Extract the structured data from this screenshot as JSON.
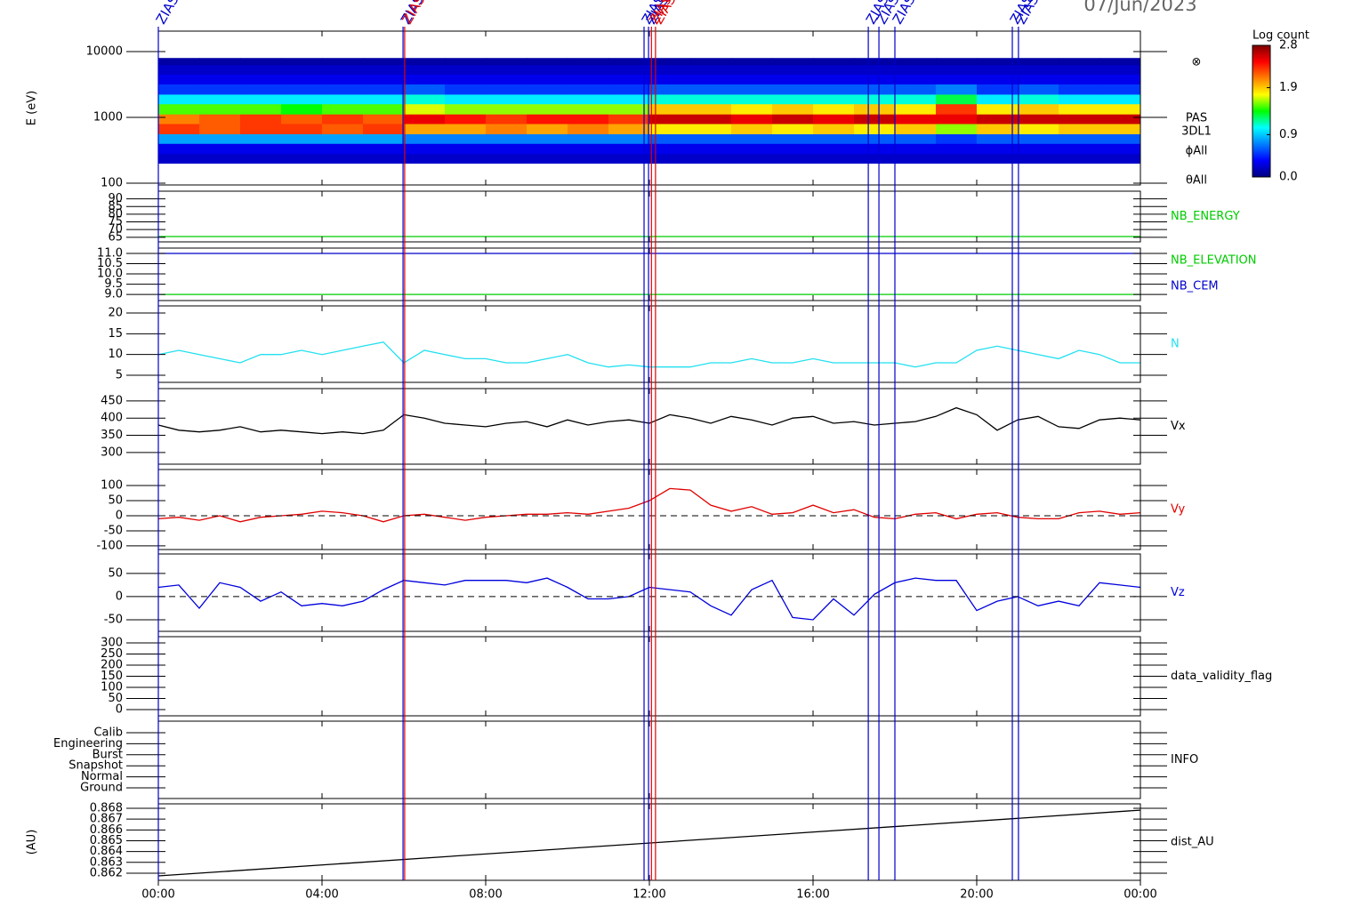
{
  "chart_data": [
    {
      "type": "heatmap",
      "title": "07/Jun/2023",
      "ylabel": "E (eV)",
      "ylog": true,
      "ylim": [
        94,
        20500
      ],
      "yticks": [
        100,
        1000,
        10000
      ],
      "xbins": [
        0,
        1,
        2,
        3,
        4,
        5,
        6,
        7,
        8,
        9,
        10,
        11,
        12,
        13,
        14,
        15,
        16,
        17,
        18,
        19,
        20,
        21,
        22,
        23,
        24
      ],
      "ybins": [
        200,
        280,
        400,
        560,
        800,
        1120,
        1600,
        2240,
        3200,
        4500,
        6300,
        8000
      ],
      "z": [
        [
          0.2,
          0.3,
          0.8,
          2.3,
          2.1,
          1.5,
          1.0,
          0.5,
          0.3,
          0.2,
          0.1
        ],
        [
          0.2,
          0.3,
          0.8,
          2.2,
          2.2,
          1.5,
          1.0,
          0.5,
          0.3,
          0.2,
          0.1
        ],
        [
          0.2,
          0.3,
          0.8,
          2.3,
          2.3,
          1.5,
          1.0,
          0.5,
          0.3,
          0.2,
          0.1
        ],
        [
          0.2,
          0.3,
          0.8,
          2.3,
          2.2,
          1.4,
          1.0,
          0.5,
          0.3,
          0.2,
          0.1
        ],
        [
          0.2,
          0.3,
          0.8,
          2.2,
          2.3,
          1.5,
          1.0,
          0.5,
          0.3,
          0.2,
          0.1
        ],
        [
          0.2,
          0.3,
          0.8,
          2.3,
          2.2,
          1.5,
          1.0,
          0.5,
          0.3,
          0.2,
          0.1
        ],
        [
          0.2,
          0.3,
          0.7,
          2.0,
          2.5,
          1.7,
          1.1,
          0.6,
          0.3,
          0.2,
          0.1
        ],
        [
          0.2,
          0.3,
          0.7,
          2.0,
          2.4,
          1.6,
          1.0,
          0.5,
          0.3,
          0.2,
          0.1
        ],
        [
          0.2,
          0.3,
          0.7,
          2.1,
          2.3,
          1.6,
          1.0,
          0.5,
          0.3,
          0.2,
          0.1
        ],
        [
          0.2,
          0.3,
          0.7,
          2.0,
          2.4,
          1.6,
          1.0,
          0.5,
          0.3,
          0.2,
          0.1
        ],
        [
          0.2,
          0.3,
          0.7,
          2.1,
          2.4,
          1.6,
          1.0,
          0.5,
          0.3,
          0.2,
          0.1
        ],
        [
          0.2,
          0.3,
          0.7,
          2.0,
          2.3,
          1.6,
          1.0,
          0.5,
          0.3,
          0.2,
          0.1
        ],
        [
          0.2,
          0.3,
          0.6,
          1.8,
          2.6,
          1.9,
          1.1,
          0.6,
          0.3,
          0.2,
          0.1
        ],
        [
          0.2,
          0.3,
          0.6,
          1.8,
          2.6,
          1.9,
          1.1,
          0.6,
          0.3,
          0.2,
          0.1
        ],
        [
          0.2,
          0.3,
          0.6,
          1.9,
          2.5,
          1.8,
          1.1,
          0.6,
          0.3,
          0.2,
          0.1
        ],
        [
          0.2,
          0.3,
          0.6,
          1.8,
          2.6,
          1.9,
          1.1,
          0.6,
          0.3,
          0.2,
          0.1
        ],
        [
          0.2,
          0.3,
          0.6,
          1.9,
          2.5,
          1.8,
          1.1,
          0.6,
          0.3,
          0.2,
          0.1
        ],
        [
          0.2,
          0.3,
          0.6,
          1.8,
          2.6,
          1.9,
          1.1,
          0.6,
          0.3,
          0.2,
          0.1
        ],
        [
          0.2,
          0.3,
          0.6,
          1.9,
          2.5,
          1.8,
          1.1,
          0.6,
          0.3,
          0.2,
          0.1
        ],
        [
          0.2,
          0.3,
          0.5,
          1.6,
          2.5,
          2.3,
          1.3,
          0.7,
          0.3,
          0.2,
          0.1
        ],
        [
          0.2,
          0.3,
          0.6,
          1.9,
          2.6,
          1.8,
          1.0,
          0.5,
          0.3,
          0.2,
          0.1
        ],
        [
          0.2,
          0.3,
          0.6,
          1.8,
          2.6,
          1.9,
          1.1,
          0.6,
          0.3,
          0.2,
          0.1
        ],
        [
          0.2,
          0.3,
          0.6,
          1.9,
          2.6,
          1.8,
          1.0,
          0.5,
          0.3,
          0.2,
          0.1
        ],
        [
          0.2,
          0.3,
          0.6,
          1.9,
          2.6,
          1.8,
          1.0,
          0.5,
          0.3,
          0.2,
          0.1
        ]
      ],
      "zlim": [
        0,
        2.8
      ],
      "colorbar_title": "Log count",
      "zticks": [
        {
          "value": 0,
          "label": "0.0"
        },
        0.9,
        1.9,
        2.8
      ],
      "colormap": [
        "#00007f",
        "#0000ff",
        "#0080ff",
        "#00ffff",
        "#00ff00",
        "#ffff00",
        "#ff8000",
        "#ff0000",
        "#7f0000"
      ],
      "labels": [
        "⊗",
        "PAS",
        "3DL1",
        "ϕAll",
        "θAll"
      ],
      "events": [
        {
          "time": 0,
          "color": "#0000cc",
          "label": "ZIAS"
        },
        {
          "time": 5.98,
          "color": "#0000cc",
          "label": "ZIAS"
        },
        {
          "time": 6.02,
          "color": "#dd0000",
          "label": "ZIAS"
        },
        {
          "time": 11.87,
          "color": "#0000cc",
          "label": "ZIAS"
        },
        {
          "time": 11.98,
          "color": "#0000cc",
          "label": "ZIAS"
        },
        {
          "time": 12.05,
          "color": "#dd0000",
          "label": "ZIAS"
        },
        {
          "time": 12.15,
          "color": "#dd0000",
          "label": "ZIAS"
        },
        {
          "time": 17.35,
          "color": "#0000cc",
          "label": "ZIAS"
        },
        {
          "time": 17.61,
          "color": "#0000cc",
          "label": "ZIAS"
        },
        {
          "time": 18.0,
          "color": "#0000cc",
          "label": "ZIAS"
        },
        {
          "time": 20.87,
          "color": "#0000cc",
          "label": "ZIAS"
        },
        {
          "time": 21.02,
          "color": "#0000cc",
          "label": "ZIAS"
        }
      ]
    },
    {
      "type": "line",
      "ylim": [
        62,
        95
      ],
      "yticks": [
        65,
        70,
        75,
        80,
        85,
        90
      ],
      "x": [
        0,
        24
      ],
      "series": [
        {
          "name": "NB_ENERGY",
          "color": "#00cc00",
          "values": [
            65.5,
            65.5
          ]
        }
      ]
    },
    {
      "type": "line",
      "ylim": [
        8.7,
        11.26
      ],
      "yticks": [
        {
          "value": 9,
          "label": "9.0"
        },
        9.5,
        {
          "value": 10,
          "label": "10.0"
        },
        10.5,
        {
          "value": 11,
          "label": "11.0"
        }
      ],
      "x": [
        0,
        24
      ],
      "series": [
        {
          "name": "NB_ELEVATION",
          "color": "#00cc00",
          "values": [
            9,
            9
          ]
        },
        {
          "name": "NB_CEM",
          "color": "#0000cc",
          "values": [
            11,
            11
          ]
        }
      ]
    },
    {
      "type": "line",
      "ylim": [
        3.3,
        21.7
      ],
      "yticks": [
        5,
        10,
        15,
        20
      ],
      "x": [
        0,
        0.5,
        1,
        1.5,
        2,
        2.5,
        3,
        3.5,
        4,
        4.5,
        5,
        5.5,
        6,
        6.5,
        7,
        7.5,
        8,
        8.5,
        9,
        9.5,
        10,
        10.5,
        11,
        11.5,
        12,
        12.5,
        13,
        13.5,
        14,
        14.5,
        15,
        15.5,
        16,
        16.5,
        17,
        17.5,
        18,
        18.5,
        19,
        19.5,
        20,
        20.5,
        21,
        21.5,
        22,
        22.5,
        23,
        23.5,
        24
      ],
      "series": [
        {
          "name": "N",
          "color": "#22e0f0",
          "values": [
            10,
            11,
            10,
            9,
            8,
            10,
            10,
            11,
            10,
            11,
            12,
            13,
            8,
            11,
            10,
            9,
            9,
            8,
            8,
            9,
            10,
            8,
            7,
            7.5,
            7,
            7,
            7,
            8,
            8,
            9,
            8,
            8,
            9,
            8,
            8,
            8,
            8,
            7,
            8,
            8,
            11,
            12,
            11,
            10,
            9,
            11,
            10,
            8,
            8
          ]
        }
      ]
    },
    {
      "type": "line",
      "ylim": [
        266,
        486
      ],
      "yticks": [
        300,
        350,
        400,
        450
      ],
      "x": [
        0,
        0.5,
        1,
        1.5,
        2,
        2.5,
        3,
        3.5,
        4,
        4.5,
        5,
        5.5,
        6,
        6.5,
        7,
        7.5,
        8,
        8.5,
        9,
        9.5,
        10,
        10.5,
        11,
        11.5,
        12,
        12.5,
        13,
        13.5,
        14,
        14.5,
        15,
        15.5,
        16,
        16.5,
        17,
        17.5,
        18,
        18.5,
        19,
        19.5,
        20,
        20.5,
        21,
        21.5,
        22,
        22.5,
        23,
        23.5,
        24
      ],
      "series": [
        {
          "name": "Vx",
          "color": "#000000",
          "values": [
            380,
            365,
            360,
            365,
            375,
            360,
            365,
            360,
            355,
            360,
            355,
            365,
            410,
            400,
            385,
            380,
            375,
            385,
            390,
            375,
            395,
            380,
            390,
            395,
            385,
            410,
            400,
            385,
            405,
            395,
            380,
            400,
            405,
            385,
            390,
            380,
            385,
            390,
            405,
            430,
            410,
            365,
            395,
            405,
            375,
            370,
            395,
            400,
            395
          ]
        }
      ]
    },
    {
      "type": "line",
      "ylim": [
        -112,
        153
      ],
      "yticks": [
        -100,
        -50,
        0,
        50,
        100
      ],
      "zero_line": true,
      "x": [
        0,
        0.5,
        1,
        1.5,
        2,
        2.5,
        3,
        3.5,
        4,
        4.5,
        5,
        5.5,
        6,
        6.5,
        7,
        7.5,
        8,
        8.5,
        9,
        9.5,
        10,
        10.5,
        11,
        11.5,
        12,
        12.5,
        13,
        13.5,
        14,
        14.5,
        15,
        15.5,
        16,
        16.5,
        17,
        17.5,
        18,
        18.5,
        19,
        19.5,
        20,
        20.5,
        21,
        21.5,
        22,
        22.5,
        23,
        23.5,
        24
      ],
      "series": [
        {
          "name": "Vy",
          "color": "#e00000",
          "values": [
            -10,
            -5,
            -15,
            0,
            -20,
            -5,
            0,
            5,
            15,
            10,
            0,
            -20,
            0,
            5,
            -5,
            -15,
            -5,
            0,
            5,
            5,
            10,
            5,
            15,
            25,
            50,
            90,
            85,
            35,
            15,
            30,
            5,
            10,
            35,
            10,
            20,
            -5,
            -10,
            5,
            10,
            -10,
            5,
            10,
            -5,
            -10,
            -10,
            10,
            15,
            5,
            10
          ]
        }
      ]
    },
    {
      "type": "line",
      "ylim": [
        -75,
        92
      ],
      "yticks": [
        -50,
        0,
        50
      ],
      "zero_line": true,
      "x": [
        0,
        0.5,
        1,
        1.5,
        2,
        2.5,
        3,
        3.5,
        4,
        4.5,
        5,
        5.5,
        6,
        6.5,
        7,
        7.5,
        8,
        8.5,
        9,
        9.5,
        10,
        10.5,
        11,
        11.5,
        12,
        12.5,
        13,
        13.5,
        14,
        14.5,
        15,
        15.5,
        16,
        16.5,
        17,
        17.5,
        18,
        18.5,
        19,
        19.5,
        20,
        20.5,
        21,
        21.5,
        22,
        22.5,
        23,
        23.5,
        24
      ],
      "series": [
        {
          "name": "Vz",
          "color": "#0000dd",
          "values": [
            20,
            25,
            -25,
            30,
            20,
            -10,
            10,
            -20,
            -15,
            -20,
            -10,
            15,
            35,
            30,
            25,
            35,
            35,
            35,
            30,
            40,
            20,
            -5,
            -5,
            0,
            20,
            15,
            10,
            -20,
            -40,
            15,
            35,
            -45,
            -50,
            -5,
            -40,
            5,
            30,
            40,
            35,
            35,
            -30,
            -10,
            0,
            -20,
            -10,
            -20,
            30,
            25,
            20
          ]
        }
      ]
    },
    {
      "type": "line",
      "ylim": [
        -28,
        328
      ],
      "yticks": [
        0,
        50,
        100,
        150,
        200,
        250,
        300
      ],
      "series": [
        {
          "name": "data_validity_flag",
          "color": "#000000"
        }
      ]
    },
    {
      "type": "category",
      "yticks": [
        "Calib",
        "Engineering",
        "Burst",
        "Snapshot",
        "Normal",
        "Ground"
      ],
      "series": [
        {
          "name": "INFO",
          "color": "#000000"
        }
      ]
    },
    {
      "type": "line",
      "ylabel": "(AU)",
      "ylim": [
        0.86134,
        0.86841
      ],
      "yticks": [
        0.862,
        0.863,
        0.864,
        0.865,
        0.866,
        0.867,
        0.868
      ],
      "x": [
        0,
        24
      ],
      "series": [
        {
          "name": "dist_AU",
          "color": "#000000",
          "values": [
            0.86175,
            0.86783
          ]
        }
      ],
      "xlim": [
        0,
        24
      ],
      "xticks": [
        {
          "value": 0,
          "label": "00:00"
        },
        {
          "value": 4,
          "label": "04:00"
        },
        {
          "value": 8,
          "label": "08:00"
        },
        {
          "value": 12,
          "label": "12:00"
        },
        {
          "value": 16,
          "label": "16:00"
        },
        {
          "value": 20,
          "label": "20:00"
        },
        {
          "value": 24,
          "label": "00:00"
        }
      ]
    }
  ]
}
